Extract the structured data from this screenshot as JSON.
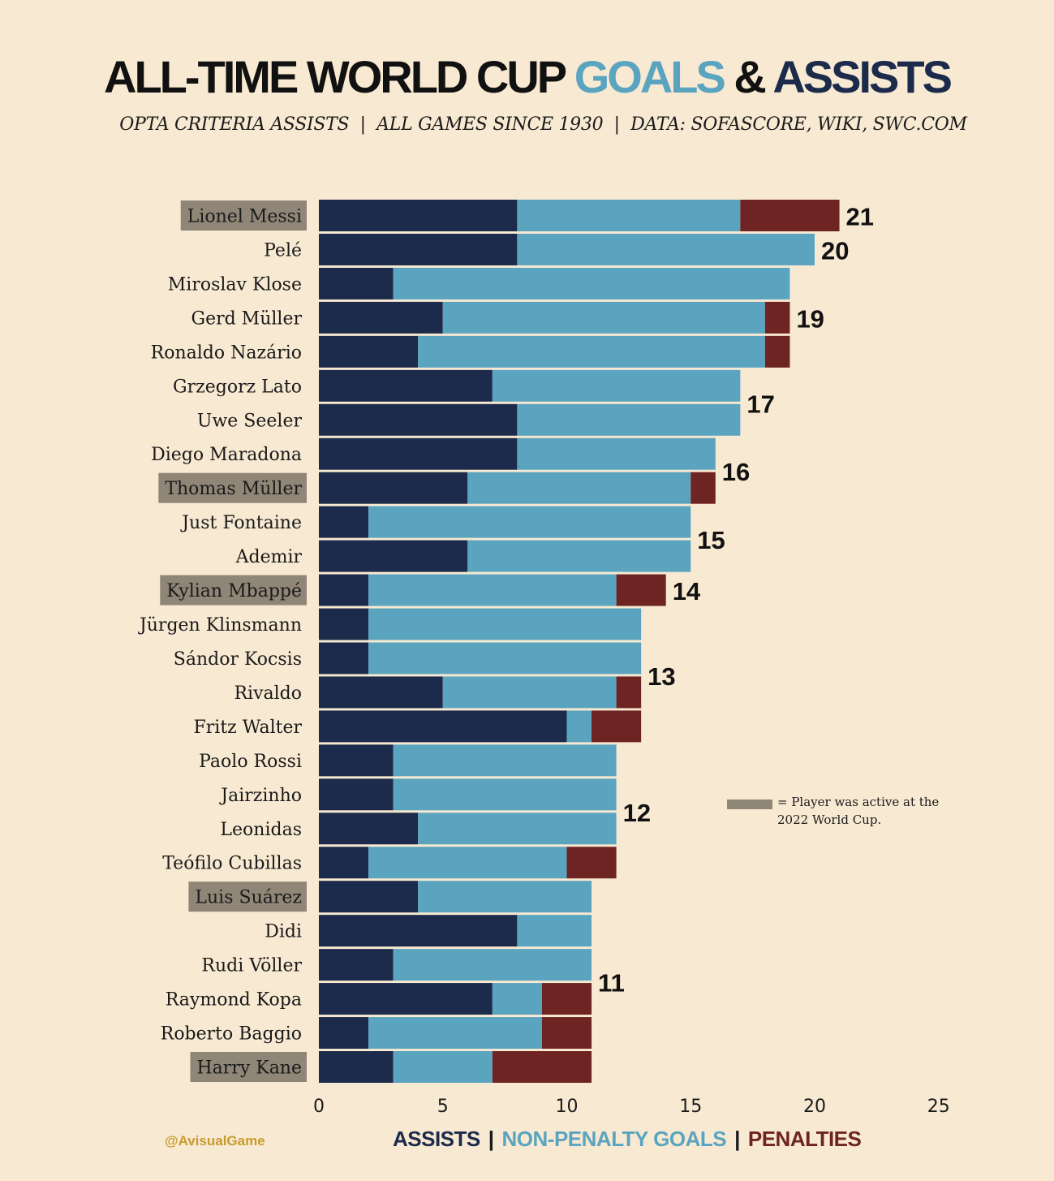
{
  "header": {
    "title_part1": "ALL-TIME WORLD CUP",
    "title_part2": "GOALS",
    "title_part3": "&",
    "title_part4": "ASSISTS",
    "subtitle": "OPTA CRITERIA ASSISTS  |  ALL GAMES SINCE 1930  |  DATA: SOFASCORE, WIKI, SWC.COM"
  },
  "colors": {
    "assists": "#1c2b4b",
    "non_penalty_goals": "#5ba4c0",
    "penalties": "#6e2422",
    "active_highlight": "#8f8677",
    "background": "#f8e9d2"
  },
  "legend": {
    "assists": "ASSISTS",
    "non_penalty_goals": "NON-PENALTY GOALS",
    "penalties": "PENALTIES",
    "separator": "|",
    "active_note": "= Player was active at the 2022 World Cup."
  },
  "credit": "@AvisualGame",
  "chart_data": {
    "type": "bar",
    "orientation": "horizontal",
    "stacked": true,
    "xlim": [
      0,
      25
    ],
    "xticks": [
      0,
      5,
      10,
      15,
      20,
      25
    ],
    "series_names": [
      "ASSISTS",
      "NON-PENALTY GOALS",
      "PENALTIES"
    ],
    "players": [
      {
        "name": "Lionel Messi",
        "assists": 8,
        "np_goals": 9,
        "penalties": 4,
        "active": true
      },
      {
        "name": "Pelé",
        "assists": 8,
        "np_goals": 12,
        "penalties": 0,
        "active": false
      },
      {
        "name": "Miroslav Klose",
        "assists": 3,
        "np_goals": 16,
        "penalties": 0,
        "active": false
      },
      {
        "name": "Gerd Müller",
        "assists": 5,
        "np_goals": 13,
        "penalties": 1,
        "active": false
      },
      {
        "name": "Ronaldo Nazário",
        "assists": 4,
        "np_goals": 14,
        "penalties": 1,
        "active": false
      },
      {
        "name": "Grzegorz Lato",
        "assists": 7,
        "np_goals": 10,
        "penalties": 0,
        "active": false
      },
      {
        "name": "Uwe Seeler",
        "assists": 8,
        "np_goals": 9,
        "penalties": 0,
        "active": false
      },
      {
        "name": "Diego Maradona",
        "assists": 8,
        "np_goals": 8,
        "penalties": 0,
        "active": false
      },
      {
        "name": "Thomas Müller",
        "assists": 6,
        "np_goals": 9,
        "penalties": 1,
        "active": true
      },
      {
        "name": "Just Fontaine",
        "assists": 2,
        "np_goals": 13,
        "penalties": 0,
        "active": false
      },
      {
        "name": "Ademir",
        "assists": 6,
        "np_goals": 9,
        "penalties": 0,
        "active": false
      },
      {
        "name": "Kylian Mbappé",
        "assists": 2,
        "np_goals": 10,
        "penalties": 2,
        "active": true
      },
      {
        "name": "Jürgen Klinsmann",
        "assists": 2,
        "np_goals": 11,
        "penalties": 0,
        "active": false
      },
      {
        "name": "Sándor Kocsis",
        "assists": 2,
        "np_goals": 11,
        "penalties": 0,
        "active": false
      },
      {
        "name": "Rivaldo",
        "assists": 5,
        "np_goals": 7,
        "penalties": 1,
        "active": false
      },
      {
        "name": "Fritz Walter",
        "assists": 10,
        "np_goals": 1,
        "penalties": 2,
        "active": false
      },
      {
        "name": "Paolo Rossi",
        "assists": 3,
        "np_goals": 9,
        "penalties": 0,
        "active": false
      },
      {
        "name": "Jairzinho",
        "assists": 3,
        "np_goals": 9,
        "penalties": 0,
        "active": false
      },
      {
        "name": "Leonidas",
        "assists": 4,
        "np_goals": 8,
        "penalties": 0,
        "active": false
      },
      {
        "name": "Teófilo Cubillas",
        "assists": 2,
        "np_goals": 8,
        "penalties": 2,
        "active": false
      },
      {
        "name": "Luis Suárez",
        "assists": 4,
        "np_goals": 7,
        "penalties": 0,
        "active": true
      },
      {
        "name": "Didi",
        "assists": 8,
        "np_goals": 3,
        "penalties": 0,
        "active": false
      },
      {
        "name": "Rudi Völler",
        "assists": 3,
        "np_goals": 8,
        "penalties": 0,
        "active": false
      },
      {
        "name": "Raymond Kopa",
        "assists": 7,
        "np_goals": 2,
        "penalties": 2,
        "active": false
      },
      {
        "name": "Roberto Baggio",
        "assists": 2,
        "np_goals": 7,
        "penalties": 2,
        "active": false
      },
      {
        "name": "Harry Kane",
        "assists": 3,
        "np_goals": 4,
        "penalties": 4,
        "active": true
      }
    ],
    "group_totals": [
      {
        "total": "21",
        "first": 0,
        "last": 0
      },
      {
        "total": "20",
        "first": 1,
        "last": 1
      },
      {
        "total": "19",
        "first": 2,
        "last": 4
      },
      {
        "total": "17",
        "first": 5,
        "last": 6
      },
      {
        "total": "16",
        "first": 7,
        "last": 8
      },
      {
        "total": "15",
        "first": 9,
        "last": 10
      },
      {
        "total": "14",
        "first": 11,
        "last": 11
      },
      {
        "total": "13",
        "first": 12,
        "last": 15
      },
      {
        "total": "12",
        "first": 16,
        "last": 19
      },
      {
        "total": "11",
        "first": 20,
        "last": 25
      }
    ]
  }
}
